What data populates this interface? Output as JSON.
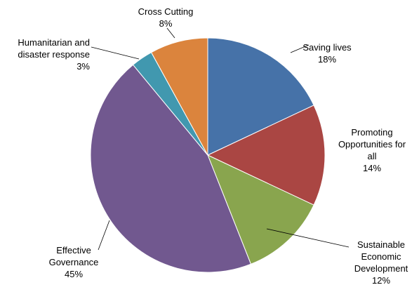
{
  "chart_data": {
    "type": "pie",
    "title": "",
    "legend": "none (data labels next to slices)",
    "start_angle_deg": 0,
    "direction": "clockwise",
    "slices": [
      {
        "label_lines": [
          "Saving lives"
        ],
        "pct_label": "18%",
        "value": 18,
        "color": "#4672a8"
      },
      {
        "label_lines": [
          "Promoting",
          "Opportunities for",
          "all"
        ],
        "pct_label": "14%",
        "value": 14,
        "color": "#aa4643"
      },
      {
        "label_lines": [
          "Sustainable",
          "Economic",
          "Development"
        ],
        "pct_label": "12%",
        "value": 12,
        "color": "#89a54e"
      },
      {
        "label_lines": [
          "Effective",
          "Governance"
        ],
        "pct_label": "45%",
        "value": 45,
        "color": "#71588f"
      },
      {
        "label_lines": [
          "Humanitarian and",
          "disaster response"
        ],
        "pct_label": "3%",
        "value": 3,
        "color": "#4198af"
      },
      {
        "label_lines": [
          "Cross Cutting"
        ],
        "pct_label": "8%",
        "value": 8,
        "color": "#db843d"
      }
    ]
  }
}
